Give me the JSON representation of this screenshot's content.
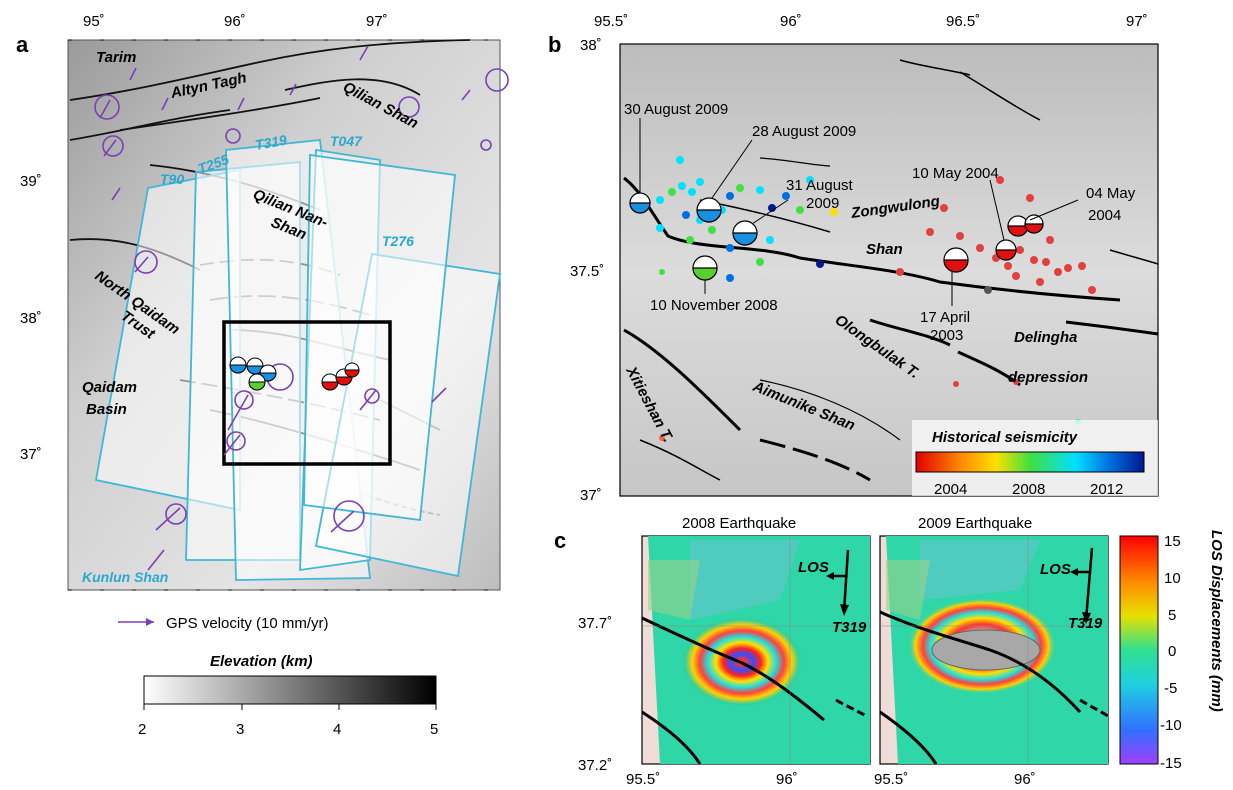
{
  "panels": {
    "a": {
      "letter": "a",
      "top_lon_ticks": [
        "95˚",
        "96˚",
        "97˚"
      ],
      "left_lat_ticks": [
        "39˚",
        "38˚",
        "37˚"
      ],
      "place_labels": [
        "Tarim",
        "Altyn Tagh",
        "Qilian Shan",
        "Qilian Nan-",
        "Shan",
        "North Qaidam",
        "Trust",
        "Qaidam",
        "Basin"
      ],
      "track_labels": [
        "T90",
        "T255",
        "T319",
        "T047",
        "T276"
      ],
      "kunlun": "Kunlun Shan",
      "gps_legend": "GPS velocity (10 mm/yr)",
      "elevation_title": "Elevation (km)",
      "elevation_ticks": [
        "2",
        "3",
        "4",
        "5"
      ]
    },
    "b": {
      "letter": "b",
      "top_lon_ticks": [
        "95.5˚",
        "96˚",
        "96.5˚",
        "97˚"
      ],
      "left_lat_ticks": [
        "38˚",
        "37.5˚",
        "37˚"
      ],
      "event_labels": [
        "30 August 2009",
        "28 August 2009",
        "31 August",
        "2009",
        "10 November 2008",
        "10 May 2004",
        "04 May",
        "2004",
        "17 April",
        "2003"
      ],
      "place_labels": [
        "Zongwulong",
        "Shan",
        "Olongbulak T.",
        "Delingha",
        "depression",
        "Xitieshan T.",
        "Aimunike Shan"
      ],
      "seismicity_title": "Historical seismicity",
      "seismicity_ticks": [
        "2004",
        "2008",
        "2012"
      ]
    },
    "c": {
      "letter": "c",
      "titles": [
        "2008 Earthquake",
        "2009 Earthquake"
      ],
      "left_lat_ticks": [
        "37.7˚",
        "37.2˚"
      ],
      "bottom_lon_ticks": [
        "95.5˚",
        "96˚",
        "95.5˚",
        "96˚"
      ],
      "los": "LOS",
      "track": "T319",
      "colorbar_label": "LOS Displacements (mm)",
      "colorbar_ticks": [
        "15",
        "10",
        "5",
        "0",
        "-5",
        "-10",
        "-15"
      ]
    }
  },
  "colors": {
    "track": "#3fb7d6",
    "gps": "#7b3fb5",
    "box": "#000000"
  }
}
